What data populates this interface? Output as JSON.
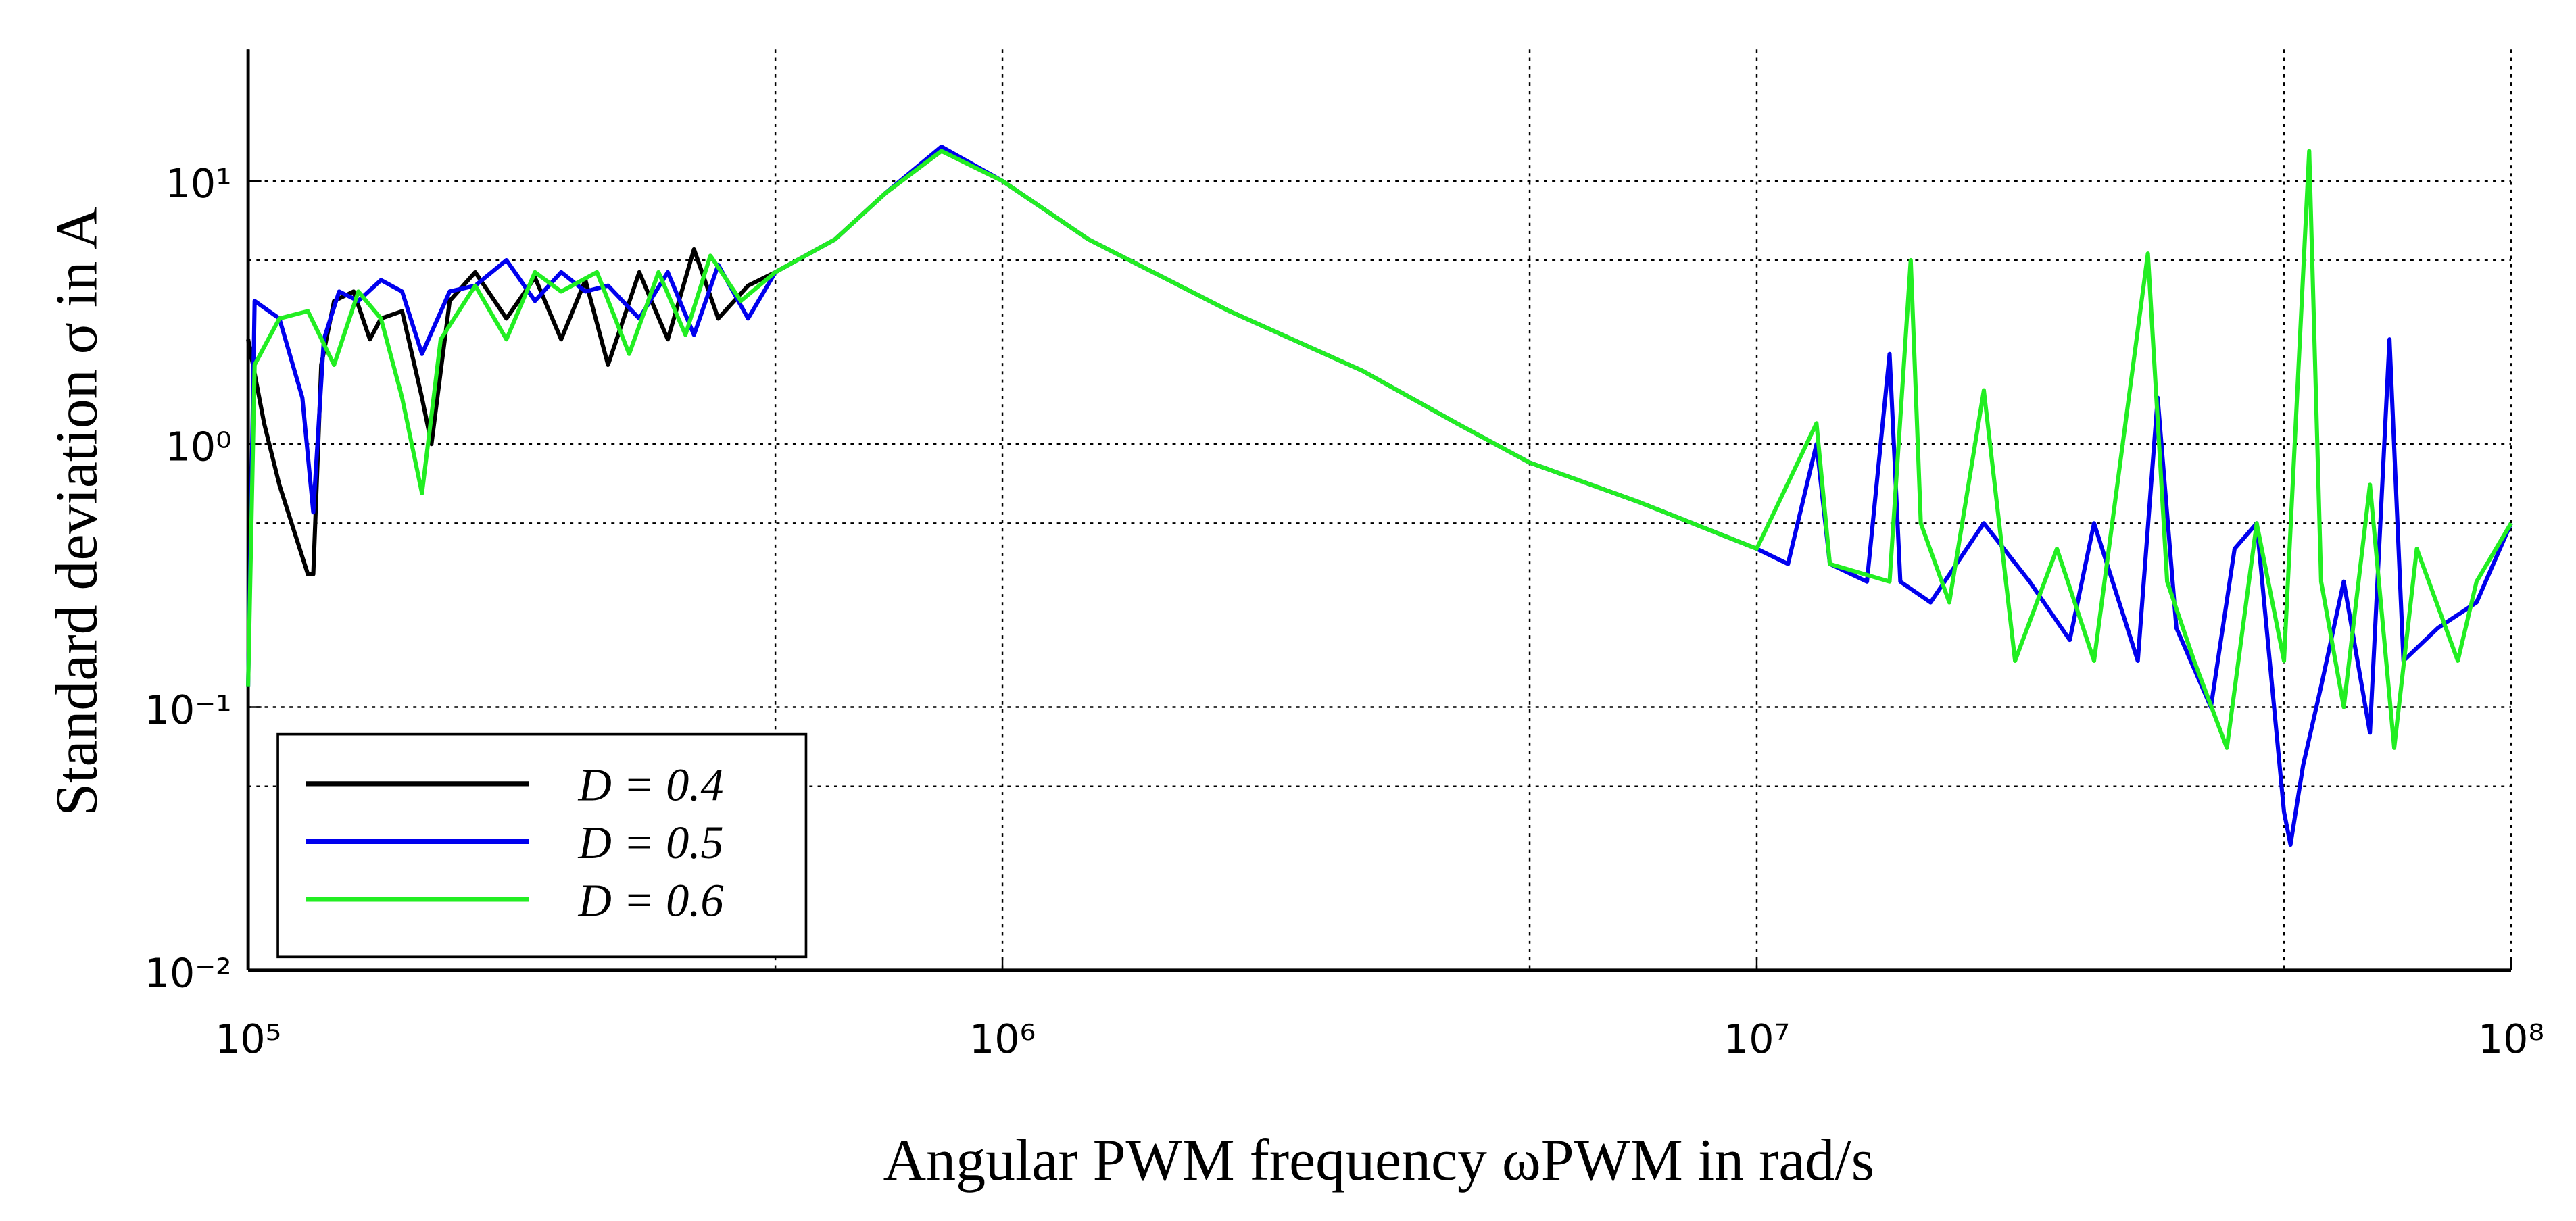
{
  "chart_data": {
    "type": "line",
    "xlabel": "Angular PWM frequency ωPWM in rad/s",
    "ylabel": "Standard deviation σ in A",
    "log_x": true,
    "log_y": true,
    "grid": true,
    "legend": "lower left",
    "xlim": [
      100000,
      100000000
    ],
    "ylim": [
      0.01,
      31.6
    ],
    "xticks": [
      {
        "value": 100000,
        "label": "10⁵"
      },
      {
        "value": 1000000,
        "label": "10⁶"
      },
      {
        "value": 10000000,
        "label": "10⁷"
      },
      {
        "value": 100000000,
        "label": "10⁸"
      }
    ],
    "yticks": [
      {
        "value": 0.01,
        "label": "10⁻²"
      },
      {
        "value": 0.1,
        "label": "10⁻¹"
      },
      {
        "value": 1,
        "label": "10⁰"
      },
      {
        "value": 10,
        "label": "10¹"
      }
    ],
    "xminorticks": [
      500000,
      5000000,
      50000000
    ],
    "yminorticks": [
      0.05,
      0.5,
      5
    ],
    "series": [
      {
        "name": "D = 0.4",
        "color": "#000000",
        "x": [
          100000,
          105000,
          110000,
          120000,
          122000,
          125000,
          130000,
          138000,
          145000,
          150000,
          160000,
          170000,
          175000,
          185000,
          200000,
          220000,
          240000,
          260000,
          280000,
          300000,
          330000,
          360000,
          390000,
          420000,
          460000,
          500000,
          600000,
          700000,
          830000,
          1000000,
          1300000,
          2000000,
          3000000,
          4000000,
          5000000,
          7000000,
          10000000
        ],
        "values": [
          2.5,
          1.2,
          0.7,
          0.32,
          0.32,
          2.0,
          3.5,
          3.8,
          2.5,
          3.0,
          3.2,
          1.5,
          1.0,
          3.5,
          4.5,
          3.0,
          4.3,
          2.5,
          4.2,
          2.0,
          4.5,
          2.5,
          5.5,
          3.0,
          4.0,
          4.5,
          6,
          9,
          13,
          10,
          6,
          3.2,
          1.9,
          1.2,
          0.85,
          0.6,
          0.4
        ]
      },
      {
        "name": "D = 0.5",
        "color": "#0000ee",
        "x": [
          100000,
          102000,
          110000,
          118000,
          122000,
          126000,
          132000,
          140000,
          150000,
          160000,
          170000,
          185000,
          200000,
          220000,
          240000,
          260000,
          280000,
          300000,
          330000,
          360000,
          390000,
          420000,
          460000,
          500000,
          600000,
          700000,
          830000,
          1000000,
          1300000,
          2000000,
          3000000,
          4000000,
          5000000,
          7000000,
          10000000,
          11000000,
          12000000,
          12500000,
          14000000,
          15000000,
          15500000,
          17000000,
          20000000,
          23000000,
          26000000,
          28000000,
          32000000,
          34000000,
          36000000,
          40000000,
          43000000,
          46000000,
          50000000,
          51000000,
          53000000,
          56000000,
          60000000,
          65000000,
          69000000,
          72000000,
          80000000,
          90000000,
          100000000
        ],
        "values": [
          0.12,
          3.5,
          3.0,
          1.5,
          0.55,
          2.5,
          3.8,
          3.5,
          4.2,
          3.8,
          2.2,
          3.8,
          4.0,
          5.0,
          3.5,
          4.5,
          3.8,
          4.0,
          3.0,
          4.5,
          2.6,
          4.8,
          3.0,
          4.5,
          6,
          9,
          13.5,
          10,
          6,
          3.2,
          1.9,
          1.2,
          0.85,
          0.6,
          0.4,
          0.35,
          1.0,
          0.35,
          0.3,
          2.2,
          0.3,
          0.25,
          0.5,
          0.3,
          0.18,
          0.5,
          0.15,
          1.5,
          0.2,
          0.1,
          0.4,
          0.5,
          0.04,
          0.03,
          0.06,
          0.12,
          0.3,
          0.08,
          2.5,
          0.15,
          0.2,
          0.25,
          0.5
        ]
      },
      {
        "name": "D = 0.6",
        "color": "#22ee22",
        "x": [
          100000,
          102000,
          110000,
          120000,
          130000,
          140000,
          150000,
          160000,
          170000,
          180000,
          200000,
          220000,
          240000,
          260000,
          290000,
          320000,
          350000,
          380000,
          410000,
          450000,
          500000,
          600000,
          700000,
          830000,
          1000000,
          1300000,
          2000000,
          3000000,
          4000000,
          5000000,
          7000000,
          10000000,
          12000000,
          12500000,
          15000000,
          16000000,
          16500000,
          18000000,
          20000000,
          22000000,
          25000000,
          28000000,
          33000000,
          35000000,
          38000000,
          42000000,
          46000000,
          50000000,
          54000000,
          56000000,
          60000000,
          65000000,
          70000000,
          75000000,
          85000000,
          90000000,
          100000000
        ],
        "values": [
          0.12,
          2.0,
          3.0,
          3.2,
          2.0,
          3.8,
          3.0,
          1.5,
          0.65,
          2.5,
          4.0,
          2.5,
          4.5,
          3.8,
          4.5,
          2.2,
          4.5,
          2.6,
          5.2,
          3.5,
          4.5,
          6,
          9,
          13,
          10,
          6,
          3.2,
          1.9,
          1.2,
          0.85,
          0.6,
          0.4,
          1.2,
          0.35,
          0.3,
          5.0,
          0.5,
          0.25,
          1.6,
          0.15,
          0.4,
          0.15,
          5.3,
          0.3,
          0.15,
          0.07,
          0.5,
          0.15,
          13,
          0.3,
          0.1,
          0.7,
          0.07,
          0.4,
          0.15,
          0.3,
          0.5
        ]
      }
    ]
  }
}
